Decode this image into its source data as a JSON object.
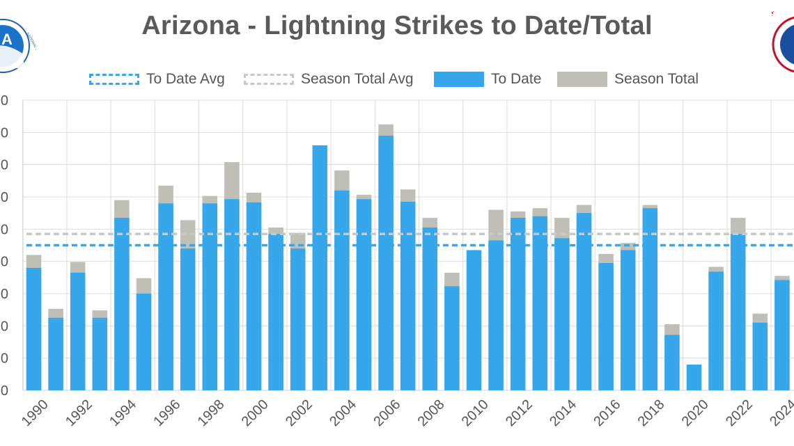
{
  "colors": {
    "to_date": "#35A7EA",
    "season_total": "#BFBFB8",
    "to_date_avg": "#35A7EA",
    "season_total_avg": "#C8C8C4",
    "grid": "#DDDDDD",
    "title": "#5A5A5A",
    "text": "#555555"
  },
  "logos": {
    "left": {
      "icon": "noaa-logo",
      "text": "NATIONAL OCEANIC AND ATMOSPHERIC ADMINISTRATION · U.S. DEPARTMENT OF COMMERCE",
      "letters": "A"
    },
    "right": {
      "icon": "nws-logo",
      "text": "NATIONAL W"
    }
  },
  "chart_data": {
    "type": "bar",
    "title": "Arizona - Lightning Strikes to Date/Total",
    "xlabel": "",
    "ylabel": "",
    "grid": true,
    "legend_position": "top",
    "x_tick_labels": [
      "1990",
      "1992",
      "1994",
      "1996",
      "1998",
      "2000",
      "2002",
      "2004",
      "2006",
      "2008",
      "2010",
      "2012",
      "2014",
      "2016",
      "2018",
      "2020",
      "2022",
      "2024"
    ],
    "categories": [
      "1990",
      "1991",
      "1992",
      "1993",
      "1994",
      "1995",
      "1996",
      "1997",
      "1998",
      "1999",
      "2000",
      "2001",
      "2002",
      "2003",
      "2004",
      "2005",
      "2006",
      "2007",
      "2008",
      "2009",
      "2010",
      "2011",
      "2012",
      "2013",
      "2014",
      "2015",
      "2016",
      "2017",
      "2018",
      "2019",
      "2020",
      "2021",
      "2022",
      "2023",
      "2024"
    ],
    "series": [
      {
        "name": "To Date",
        "values": [
          3.8,
          2.25,
          3.65,
          2.25,
          5.35,
          3.0,
          5.8,
          4.4,
          5.8,
          5.93,
          5.83,
          4.85,
          4.4,
          7.6,
          6.2,
          5.93,
          7.9,
          5.85,
          5.05,
          3.23,
          4.35,
          4.65,
          5.35,
          5.4,
          4.72,
          5.5,
          3.95,
          4.35,
          5.65,
          1.72,
          0.8,
          3.68,
          4.85,
          2.1,
          3.42
        ]
      },
      {
        "name": "Season Total",
        "values": [
          4.2,
          2.53,
          3.98,
          2.48,
          5.9,
          3.48,
          6.35,
          5.28,
          6.03,
          7.08,
          6.13,
          5.05,
          4.88,
          7.6,
          6.82,
          6.07,
          8.25,
          6.23,
          5.35,
          3.65,
          4.35,
          5.6,
          5.55,
          5.65,
          5.35,
          5.75,
          4.23,
          4.57,
          5.75,
          2.05,
          0.8,
          3.83,
          5.35,
          2.38,
          3.55
        ]
      }
    ],
    "averages": [
      {
        "name": "To Date Avg",
        "value": 4.5
      },
      {
        "name": "Season Total Avg",
        "value": 4.85
      }
    ],
    "legend": [
      "To Date Avg",
      "Season Total Avg",
      "To Date",
      "Season Total"
    ],
    "ylim": [
      0,
      9
    ],
    "y_tick_labels": [
      "0",
      "0",
      "0",
      "0",
      "0",
      "0",
      "0",
      "0",
      "0",
      "0"
    ]
  }
}
